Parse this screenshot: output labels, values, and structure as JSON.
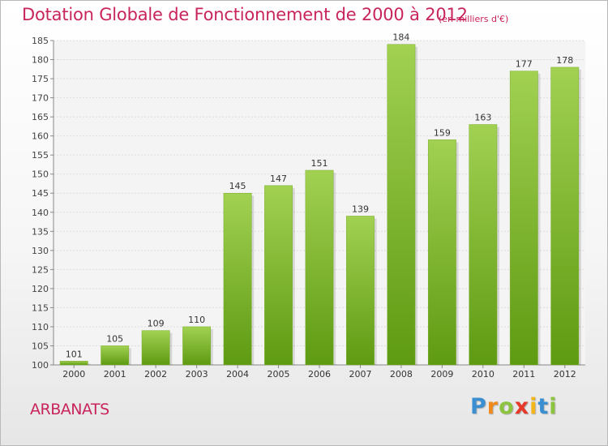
{
  "title": "Dotation Globale de Fonctionnement de 2000 à 2012",
  "subtitle": "(en milliers d'€)",
  "commune": "ARBANATS",
  "logo": {
    "text": "Proxiti",
    "letters": [
      {
        "ch": "P",
        "color": "#3b8fd0"
      },
      {
        "ch": "r",
        "color": "#f08a1c"
      },
      {
        "ch": "o",
        "color": "#8cc33f"
      },
      {
        "ch": "x",
        "color": "#e53a2a"
      },
      {
        "ch": "i",
        "color": "#f2b51c"
      },
      {
        "ch": "t",
        "color": "#3b8fd0"
      },
      {
        "ch": "i",
        "color": "#8cc33f"
      }
    ]
  },
  "colors": {
    "title": "#c8245d",
    "bar_light": "#a2d152",
    "bar_dark": "#5e9a12"
  },
  "chart_data": {
    "type": "bar",
    "categories": [
      "2000",
      "2001",
      "2002",
      "2003",
      "2004",
      "2005",
      "2006",
      "2007",
      "2008",
      "2009",
      "2010",
      "2011",
      "2012"
    ],
    "values": [
      101,
      105,
      109,
      110,
      145,
      147,
      151,
      139,
      184,
      159,
      163,
      177,
      178
    ],
    "ylim": [
      100,
      185
    ],
    "yticks": [
      100,
      105,
      110,
      115,
      120,
      125,
      130,
      135,
      140,
      145,
      150,
      155,
      160,
      165,
      170,
      175,
      180,
      185
    ],
    "grid": true,
    "data_labels": true
  }
}
